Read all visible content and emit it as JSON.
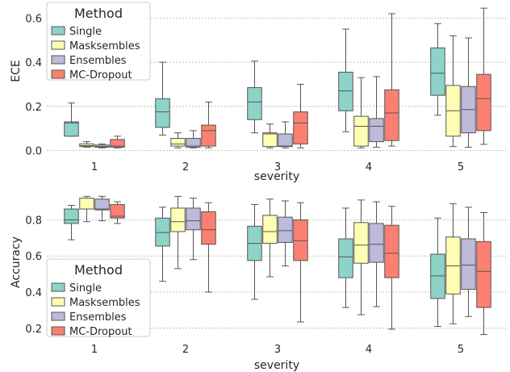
{
  "chart_data": [
    {
      "type": "box",
      "xlabel": "severity",
      "ylabel": "ECE",
      "categories": [
        "1",
        "2",
        "3",
        "4",
        "5"
      ],
      "ylim": [
        -0.02,
        0.66
      ],
      "yticks": [
        0.0,
        0.2,
        0.4,
        0.6
      ],
      "ytick_labels": [
        "0.0",
        "0.2",
        "0.4",
        "0.6"
      ],
      "grid": "horizontal dotted",
      "legend": {
        "title": "Method",
        "placement": "top-left"
      },
      "series": [
        {
          "name": "Single",
          "color": "#8dd3c7",
          "boxes": [
            {
              "whislo": 0.065,
              "q1": 0.065,
              "med": 0.125,
              "q3": 0.13,
              "whishi": 0.215
            },
            {
              "whislo": 0.07,
              "q1": 0.105,
              "med": 0.175,
              "q3": 0.235,
              "whishi": 0.4
            },
            {
              "whislo": 0.08,
              "q1": 0.14,
              "med": 0.22,
              "q3": 0.285,
              "whishi": 0.405
            },
            {
              "whislo": 0.085,
              "q1": 0.18,
              "med": 0.27,
              "q3": 0.355,
              "whishi": 0.55
            },
            {
              "whislo": 0.16,
              "q1": 0.25,
              "med": 0.35,
              "q3": 0.465,
              "whishi": 0.575
            }
          ]
        },
        {
          "name": "Masksembles",
          "color": "#ffffb3",
          "boxes": [
            {
              "whislo": 0.015,
              "q1": 0.018,
              "med": 0.022,
              "q3": 0.03,
              "whishi": 0.04
            },
            {
              "whislo": 0.012,
              "q1": 0.02,
              "med": 0.03,
              "q3": 0.055,
              "whishi": 0.08
            },
            {
              "whislo": 0.012,
              "q1": 0.018,
              "med": 0.075,
              "q3": 0.08,
              "whishi": 0.12
            },
            {
              "whislo": 0.012,
              "q1": 0.02,
              "med": 0.11,
              "q3": 0.155,
              "whishi": 0.33
            },
            {
              "whislo": 0.018,
              "q1": 0.065,
              "med": 0.18,
              "q3": 0.295,
              "whishi": 0.52
            }
          ]
        },
        {
          "name": "Ensembles",
          "color": "#bebada",
          "boxes": [
            {
              "whislo": 0.012,
              "q1": 0.015,
              "med": 0.018,
              "q3": 0.025,
              "whishi": 0.03
            },
            {
              "whislo": 0.012,
              "q1": 0.015,
              "med": 0.02,
              "q3": 0.055,
              "whishi": 0.09
            },
            {
              "whislo": 0.012,
              "q1": 0.018,
              "med": 0.02,
              "q3": 0.075,
              "whishi": 0.13
            },
            {
              "whislo": 0.015,
              "q1": 0.04,
              "med": 0.11,
              "q3": 0.145,
              "whishi": 0.335
            },
            {
              "whislo": 0.015,
              "q1": 0.08,
              "med": 0.185,
              "q3": 0.29,
              "whishi": 0.51
            }
          ]
        },
        {
          "name": "MC-Dropout",
          "color": "#fb8072",
          "boxes": [
            {
              "whislo": 0.012,
              "q1": 0.015,
              "med": 0.02,
              "q3": 0.05,
              "whishi": 0.065
            },
            {
              "whislo": 0.012,
              "q1": 0.02,
              "med": 0.09,
              "q3": 0.115,
              "whishi": 0.22
            },
            {
              "whislo": 0.012,
              "q1": 0.03,
              "med": 0.125,
              "q3": 0.175,
              "whishi": 0.3
            },
            {
              "whislo": 0.02,
              "q1": 0.045,
              "med": 0.17,
              "q3": 0.275,
              "whishi": 0.62
            },
            {
              "whislo": 0.028,
              "q1": 0.09,
              "med": 0.235,
              "q3": 0.345,
              "whishi": 0.645
            }
          ]
        }
      ]
    },
    {
      "type": "box",
      "xlabel": "severity",
      "ylabel": "Accuracy",
      "categories": [
        "1",
        "2",
        "3",
        "4",
        "5"
      ],
      "ylim": [
        0.15,
        0.945
      ],
      "yticks": [
        0.2,
        0.4,
        0.6,
        0.8
      ],
      "ytick_labels": [
        "0.2",
        "0.4",
        "0.6",
        "0.8"
      ],
      "grid": "horizontal dotted",
      "legend": {
        "title": "Method",
        "placement": "bottom-left"
      },
      "series": [
        {
          "name": "Single",
          "color": "#8dd3c7",
          "boxes": [
            {
              "whislo": 0.69,
              "q1": 0.78,
              "med": 0.8,
              "q3": 0.86,
              "whishi": 0.88
            },
            {
              "whislo": 0.46,
              "q1": 0.655,
              "med": 0.73,
              "q3": 0.81,
              "whishi": 0.87
            },
            {
              "whislo": 0.36,
              "q1": 0.575,
              "med": 0.67,
              "q3": 0.765,
              "whishi": 0.885
            },
            {
              "whislo": 0.315,
              "q1": 0.48,
              "med": 0.595,
              "q3": 0.695,
              "whishi": 0.865
            },
            {
              "whislo": 0.21,
              "q1": 0.365,
              "med": 0.49,
              "q3": 0.61,
              "whishi": 0.81
            }
          ]
        },
        {
          "name": "Masksembles",
          "color": "#ffffb3",
          "boxes": [
            {
              "whislo": 0.79,
              "q1": 0.86,
              "med": 0.86,
              "q3": 0.92,
              "whishi": 0.93
            },
            {
              "whislo": 0.53,
              "q1": 0.735,
              "med": 0.79,
              "q3": 0.865,
              "whishi": 0.93
            },
            {
              "whislo": 0.485,
              "q1": 0.67,
              "med": 0.735,
              "q3": 0.825,
              "whishi": 0.915
            },
            {
              "whislo": 0.275,
              "q1": 0.56,
              "med": 0.66,
              "q3": 0.785,
              "whishi": 0.91
            },
            {
              "whislo": 0.225,
              "q1": 0.39,
              "med": 0.545,
              "q3": 0.705,
              "whishi": 0.89
            }
          ]
        },
        {
          "name": "Ensembles",
          "color": "#bebada",
          "boxes": [
            {
              "whislo": 0.795,
              "q1": 0.855,
              "med": 0.86,
              "q3": 0.915,
              "whishi": 0.93
            },
            {
              "whislo": 0.58,
              "q1": 0.745,
              "med": 0.795,
              "q3": 0.865,
              "whishi": 0.92
            },
            {
              "whislo": 0.545,
              "q1": 0.675,
              "med": 0.74,
              "q3": 0.815,
              "whishi": 0.905
            },
            {
              "whislo": 0.32,
              "q1": 0.565,
              "med": 0.665,
              "q3": 0.78,
              "whishi": 0.9
            },
            {
              "whislo": 0.265,
              "q1": 0.415,
              "med": 0.55,
              "q3": 0.695,
              "whishi": 0.87
            }
          ]
        },
        {
          "name": "MC-Dropout",
          "color": "#fb8072",
          "boxes": [
            {
              "whislo": 0.78,
              "q1": 0.81,
              "med": 0.82,
              "q3": 0.885,
              "whishi": 0.9
            },
            {
              "whislo": 0.4,
              "q1": 0.665,
              "med": 0.745,
              "q3": 0.845,
              "whishi": 0.895
            },
            {
              "whislo": 0.235,
              "q1": 0.575,
              "med": 0.685,
              "q3": 0.8,
              "whishi": 0.895
            },
            {
              "whislo": 0.195,
              "q1": 0.48,
              "med": 0.615,
              "q3": 0.77,
              "whishi": 0.875
            },
            {
              "whislo": 0.165,
              "q1": 0.315,
              "med": 0.515,
              "q3": 0.68,
              "whishi": 0.84
            }
          ]
        }
      ]
    }
  ]
}
